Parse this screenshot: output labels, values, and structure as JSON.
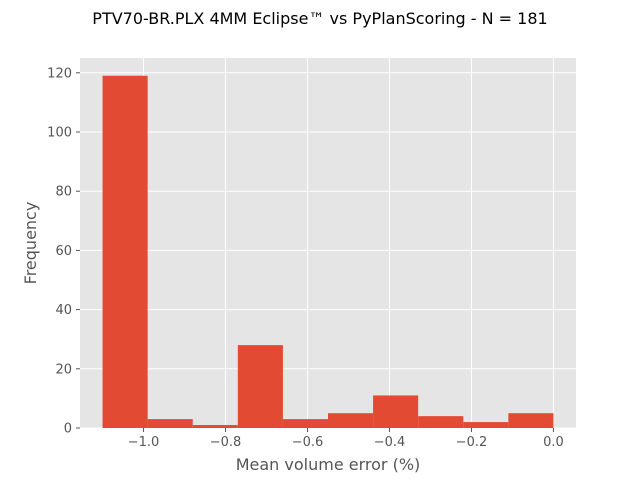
{
  "chart_data": {
    "type": "bar",
    "title": "PTV70-BR.PLX 4MM Eclipse™ vs PyPlanScoring - N = 181",
    "xlabel": "Mean volume error (%)",
    "ylabel": "Frequency",
    "xlim": [
      -1.155,
      0.055
    ],
    "ylim": [
      0,
      125
    ],
    "grid": true,
    "colors": {
      "bar": "#E24A33",
      "plot_background": "#E5E5E5",
      "grid": "#FFFFFF"
    },
    "bins": [
      {
        "x0": -1.1,
        "x1": -0.99,
        "count": 119
      },
      {
        "x0": -0.99,
        "x1": -0.88,
        "count": 3
      },
      {
        "x0": -0.88,
        "x1": -0.77,
        "count": 1
      },
      {
        "x0": -0.77,
        "x1": -0.66,
        "count": 28
      },
      {
        "x0": -0.66,
        "x1": -0.55,
        "count": 3
      },
      {
        "x0": -0.55,
        "x1": -0.44,
        "count": 5
      },
      {
        "x0": -0.44,
        "x1": -0.33,
        "count": 11
      },
      {
        "x0": -0.33,
        "x1": -0.22,
        "count": 4
      },
      {
        "x0": -0.22,
        "x1": -0.11,
        "count": 2
      },
      {
        "x0": -0.11,
        "x1": 0.0,
        "count": 5
      }
    ],
    "xticks": [
      {
        "value": -1.0,
        "label": "−1.0"
      },
      {
        "value": -0.8,
        "label": "−0.8"
      },
      {
        "value": -0.6,
        "label": "−0.6"
      },
      {
        "value": -0.4,
        "label": "−0.4"
      },
      {
        "value": -0.2,
        "label": "−0.2"
      },
      {
        "value": 0.0,
        "label": "0.0"
      }
    ],
    "yticks": [
      {
        "value": 0,
        "label": "0"
      },
      {
        "value": 20,
        "label": "20"
      },
      {
        "value": 40,
        "label": "40"
      },
      {
        "value": 60,
        "label": "60"
      },
      {
        "value": 80,
        "label": "80"
      },
      {
        "value": 100,
        "label": "100"
      },
      {
        "value": 120,
        "label": "120"
      }
    ]
  }
}
